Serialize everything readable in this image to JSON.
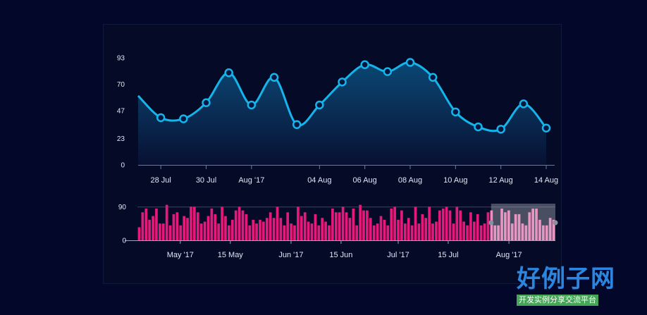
{
  "chart_data": [
    {
      "type": "area",
      "x": [
        "2017-07-27",
        "2017-07-28",
        "2017-07-29",
        "2017-07-30",
        "2017-07-31",
        "2017-08-01",
        "2017-08-02",
        "2017-08-03",
        "2017-08-04",
        "2017-08-05",
        "2017-08-06",
        "2017-08-07",
        "2017-08-08",
        "2017-08-09",
        "2017-08-10",
        "2017-08-11",
        "2017-08-12",
        "2017-08-13",
        "2017-08-14"
      ],
      "values": [
        60,
        41,
        40,
        54,
        80,
        52,
        76,
        35,
        52,
        72,
        87,
        81,
        89,
        76,
        46,
        33,
        31,
        53,
        32
      ],
      "yticks": [
        "93",
        "70",
        "47",
        "23",
        "0"
      ],
      "ytick_values": [
        93,
        70,
        47,
        23,
        0
      ],
      "ylim": [
        0,
        93
      ],
      "xtick_labels": [
        "28 Jul",
        "30 Jul",
        "Aug '17",
        "04 Aug",
        "06 Aug",
        "08 Aug",
        "10 Aug",
        "12 Aug",
        "14 Aug"
      ],
      "xtick_dates": [
        "2017-07-28",
        "2017-07-30",
        "2017-08-01",
        "2017-08-04",
        "2017-08-06",
        "2017-08-08",
        "2017-08-10",
        "2017-08-12",
        "2017-08-14"
      ],
      "line_color": "#13b5ea",
      "grid": false
    },
    {
      "type": "bar",
      "x_start": "2017-04-19",
      "x_end": "2017-08-14",
      "values": [
        35,
        75,
        85,
        55,
        65,
        85,
        45,
        45,
        95,
        40,
        70,
        75,
        40,
        65,
        60,
        90,
        90,
        75,
        45,
        50,
        65,
        85,
        70,
        45,
        90,
        65,
        40,
        55,
        80,
        90,
        80,
        70,
        40,
        55,
        45,
        55,
        50,
        60,
        75,
        60,
        90,
        60,
        40,
        75,
        45,
        40,
        90,
        65,
        75,
        50,
        45,
        70,
        40,
        60,
        50,
        40,
        85,
        75,
        75,
        90,
        75,
        60,
        85,
        40,
        95,
        80,
        80,
        60,
        40,
        45,
        65,
        55,
        40,
        85,
        90,
        55,
        80,
        45,
        60,
        40,
        90,
        45,
        70,
        60,
        90,
        45,
        50,
        80,
        85,
        90,
        80,
        45,
        90,
        80,
        50,
        40,
        75,
        50,
        70,
        40,
        45,
        75,
        80,
        40,
        40,
        85,
        75,
        80,
        45,
        70,
        70,
        45,
        40,
        75,
        85,
        85,
        55,
        40,
        40,
        60,
        55
      ],
      "yticks": [
        "90",
        "0"
      ],
      "ytick_values": [
        90,
        0
      ],
      "ylim": [
        0,
        100
      ],
      "xtick_labels": [
        "May '17",
        "15 May",
        "Jun '17",
        "15 Jun",
        "Jul '17",
        "15 Jul",
        "Aug '17"
      ],
      "xtick_dates": [
        "2017-05-01",
        "2017-05-15",
        "2017-06-01",
        "2017-06-15",
        "2017-07-01",
        "2017-07-15",
        "2017-08-01"
      ],
      "bar_color": "#e5187c",
      "selection": {
        "start": "2017-07-27",
        "end": "2017-08-14"
      },
      "selection_bar_color": "#f57ab5"
    }
  ],
  "watermark": {
    "title": "好例子网",
    "subtitle": "开发实例分享交流平台"
  }
}
